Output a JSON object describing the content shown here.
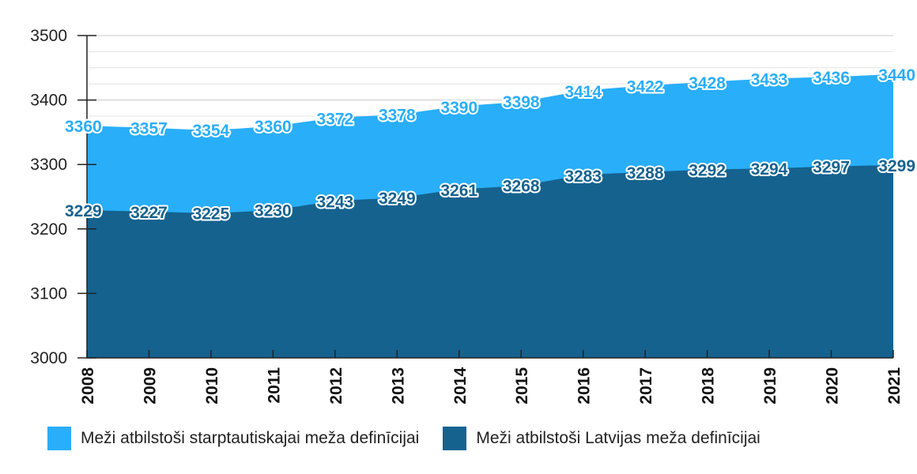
{
  "chart_data": {
    "type": "area",
    "x": [
      "2008",
      "2009",
      "2010",
      "2011",
      "2012",
      "2013",
      "2014",
      "2015",
      "2016",
      "2017",
      "2018",
      "2019",
      "2020",
      "2021"
    ],
    "series": [
      {
        "name": "Meži atbilstoši starptautiskajai meža definīcijai",
        "color": "#29aef9",
        "values": [
          3360,
          3357,
          3354,
          3360,
          3372,
          3378,
          3390,
          3398,
          3414,
          3422,
          3428,
          3433,
          3436,
          3440
        ]
      },
      {
        "name": "Meži atbilstoši Latvijas meža definīcijai",
        "color": "#15628f",
        "values": [
          3229,
          3227,
          3225,
          3230,
          3243,
          3249,
          3261,
          3268,
          3283,
          3288,
          3292,
          3294,
          3297,
          3299
        ]
      }
    ],
    "ylim": [
      3000,
      3500
    ],
    "yticks": [
      3000,
      3100,
      3200,
      3300,
      3400,
      3500
    ],
    "grid": true,
    "legend": "bottom",
    "title": "",
    "xlabel": "",
    "ylabel": ""
  }
}
